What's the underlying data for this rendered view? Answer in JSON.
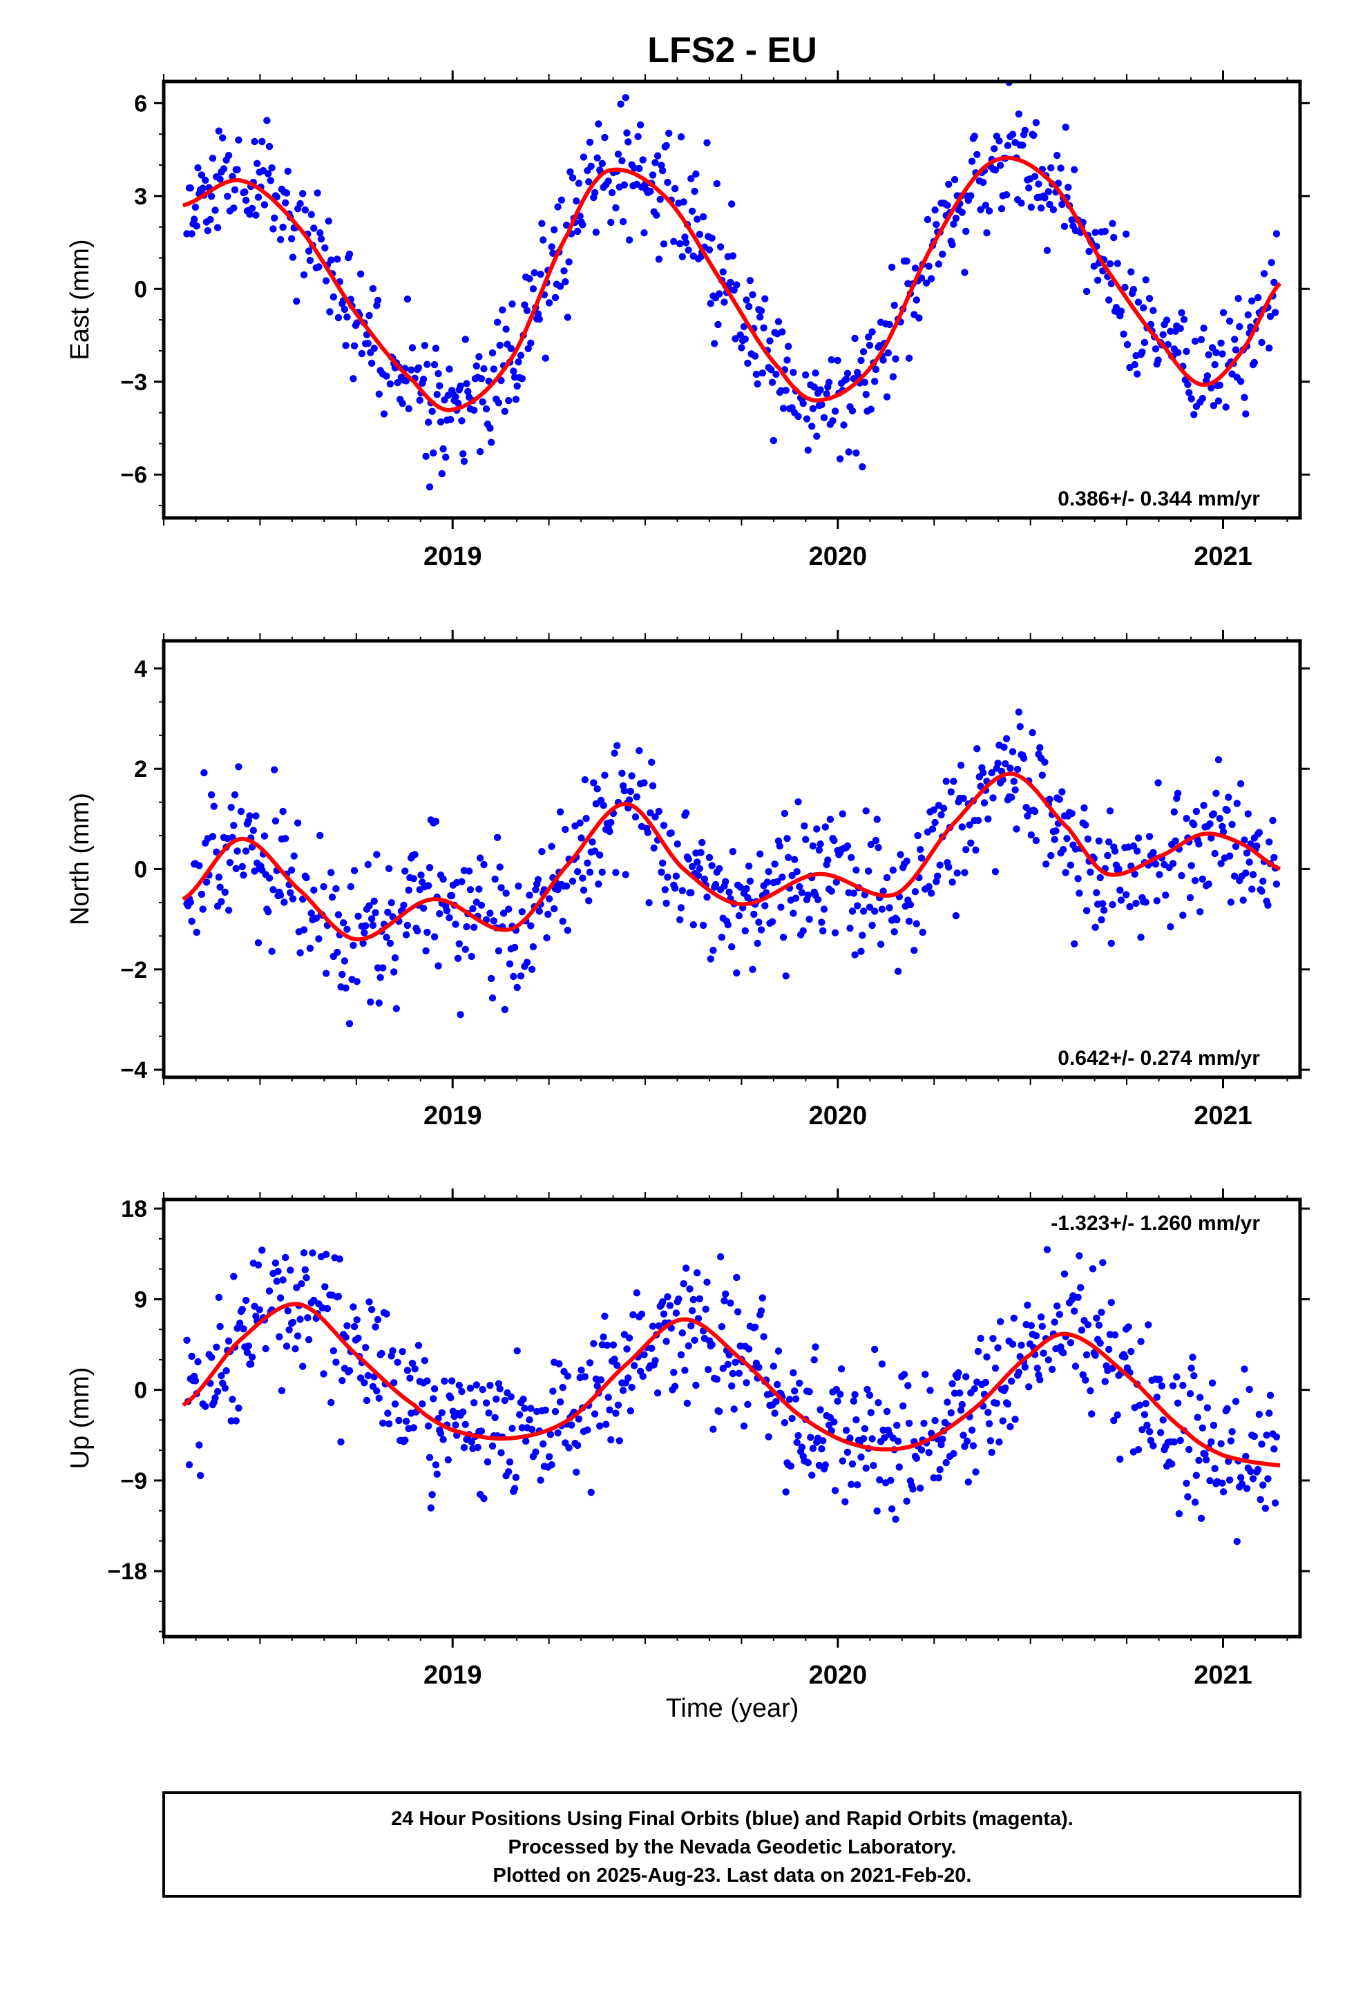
{
  "title": "LFS2 - EU",
  "xlabel": "Time (year)",
  "footer": {
    "line1": "24 Hour Positions Using Final Orbits (blue) and Rapid Orbits (magenta).",
    "line2": "Processed by the Nevada Geodetic Laboratory.",
    "line3": "Plotted on 2025-Aug-23. Last data on 2021-Feb-20."
  },
  "colors": {
    "points": "#0000ff",
    "fit": "#ff0000",
    "frame": "#000000"
  },
  "chart_data": [
    {
      "type": "scatter",
      "ylabel": "East (mm)",
      "rate_text": "0.386+/- 0.344 mm/yr",
      "rate_position": "bottom-right",
      "xlim": [
        2018.25,
        2021.2
      ],
      "ylim": [
        -7.4,
        6.7
      ],
      "yticks": [
        -6,
        -3,
        0,
        3,
        6
      ],
      "xticks": [
        2019,
        2020,
        2021
      ],
      "fit": {
        "x": [
          2018.3,
          2018.45,
          2018.6,
          2018.75,
          2018.9,
          2019.0,
          2019.15,
          2019.3,
          2019.4,
          2019.55,
          2019.7,
          2019.85,
          2019.95,
          2020.1,
          2020.25,
          2020.4,
          2020.55,
          2020.7,
          2020.85,
          2020.95,
          2021.05,
          2021.15
        ],
        "y": [
          2.7,
          3.5,
          2.0,
          -0.8,
          -3.0,
          -3.9,
          -2.3,
          1.8,
          3.8,
          3.0,
          0.2,
          -2.6,
          -3.6,
          -2.3,
          1.5,
          4.1,
          3.5,
          0.6,
          -1.9,
          -3.1,
          -2.0,
          0.2
        ]
      },
      "series": [
        {
          "name": "",
          "x": [],
          "y": []
        }
      ]
    },
    {
      "type": "scatter",
      "ylabel": "North (mm)",
      "rate_text": "0.642+/- 0.274 mm/yr",
      "rate_position": "bottom-right",
      "xlim": [
        2018.25,
        2021.2
      ],
      "ylim": [
        -4.15,
        4.55
      ],
      "yticks": [
        -4,
        -2,
        0,
        2,
        4
      ],
      "xticks": [
        2019,
        2020,
        2021
      ],
      "fit": {
        "x": [
          2018.3,
          2018.45,
          2018.6,
          2018.75,
          2018.95,
          2019.15,
          2019.3,
          2019.45,
          2019.6,
          2019.75,
          2019.95,
          2020.15,
          2020.3,
          2020.45,
          2020.6,
          2020.7,
          2020.85,
          2020.95,
          2021.05,
          2021.15
        ],
        "y": [
          -0.6,
          0.6,
          -0.4,
          -1.4,
          -0.6,
          -1.2,
          0.1,
          1.3,
          0.0,
          -0.7,
          -0.1,
          -0.5,
          0.9,
          1.9,
          0.8,
          -0.1,
          0.3,
          0.7,
          0.5,
          0.0
        ]
      },
      "series": [
        {
          "name": "",
          "x": [],
          "y": []
        }
      ]
    },
    {
      "type": "scatter",
      "ylabel": "Up (mm)",
      "rate_text": "-1.323+/- 1.260 mm/yr",
      "rate_position": "top-right",
      "xlim": [
        2018.25,
        2021.2
      ],
      "ylim": [
        -24.5,
        18.9
      ],
      "yticks": [
        -18,
        -9,
        0,
        9,
        18
      ],
      "xticks": [
        2019,
        2020,
        2021
      ],
      "fit": {
        "x": [
          2018.3,
          2018.45,
          2018.6,
          2018.75,
          2018.9,
          2019.0,
          2019.15,
          2019.3,
          2019.45,
          2019.6,
          2019.75,
          2019.9,
          2020.05,
          2020.2,
          2020.35,
          2020.5,
          2020.6,
          2020.75,
          2020.9,
          2021.0,
          2021.15
        ],
        "y": [
          -1.5,
          5.0,
          8.5,
          3.5,
          -1.5,
          -4.0,
          -4.8,
          -3.0,
          2.5,
          7.0,
          3.0,
          -2.5,
          -5.5,
          -5.5,
          -2.0,
          3.5,
          5.5,
          1.5,
          -4.0,
          -6.5,
          -7.5
        ]
      },
      "series": [
        {
          "name": "",
          "x": [],
          "y": []
        }
      ]
    }
  ]
}
